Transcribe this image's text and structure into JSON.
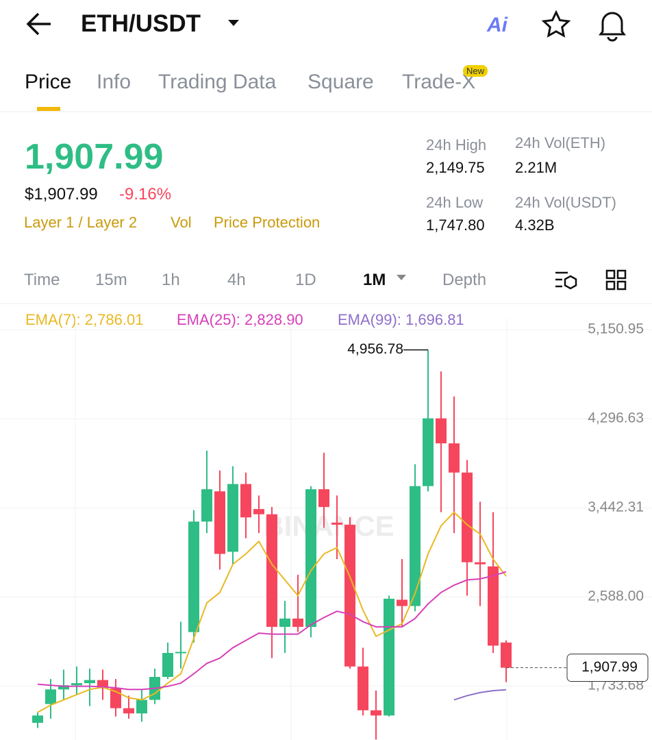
{
  "header": {
    "pair": "ETH/USDT",
    "ai": "Ai"
  },
  "tabs": [
    "Price",
    "Info",
    "Trading Data",
    "Square",
    "Trade-X"
  ],
  "badge": "New",
  "price": {
    "last": "1,907.99",
    "usd": "$1,907.99",
    "change": "-9.16%",
    "tags": [
      "Layer 1 / Layer 2",
      "Vol",
      "Price Protection"
    ]
  },
  "stats": [
    {
      "label": "24h High",
      "value": "2,149.75"
    },
    {
      "label": "24h Vol(ETH)",
      "value": "2.21M"
    },
    {
      "label": "24h Low",
      "value": "1,747.80"
    },
    {
      "label": "24h Vol(USDT)",
      "value": "4.32B"
    }
  ],
  "intervals": [
    "Time",
    "15m",
    "1h",
    "4h",
    "1D",
    "1M",
    "Depth"
  ],
  "ema_labels": [
    "EMA(7): 2,786.01",
    "EMA(25): 2,828.90",
    "EMA(99): 1,696.81"
  ],
  "chart_data": {
    "type": "candlestick",
    "watermark": "BINANCE",
    "up_color": "#2ebd85",
    "down_color": "#f6465d",
    "open": [
      1380,
      1560,
      1700,
      1740,
      1760,
      1790,
      1710,
      1520,
      1470,
      1600,
      1820,
      2050,
      2250,
      3310,
      3600,
      3020,
      3670,
      3430,
      3380,
      2300,
      2380,
      2300,
      3620,
      3300,
      3280,
      1920,
      1500,
      1450,
      2560,
      2500,
      3650,
      4300,
      4060,
      3780,
      2920,
      2880,
      2150
    ],
    "high": [
      1480,
      1800,
      1890,
      1920,
      1900,
      1890,
      1800,
      1640,
      1700,
      1900,
      2150,
      2350,
      3420,
      3990,
      3800,
      3840,
      3780,
      3560,
      3450,
      2550,
      2800,
      3650,
      3970,
      3560,
      3350,
      2100,
      1690,
      2600,
      2950,
      3860,
      4956.78,
      4750,
      4510,
      3900,
      3500,
      3400,
      2170
    ],
    "low": [
      1330,
      1420,
      1600,
      1650,
      1540,
      1600,
      1440,
      1420,
      1390,
      1560,
      1800,
      1900,
      2150,
      3200,
      2850,
      2900,
      3150,
      3200,
      2000,
      2050,
      2250,
      2200,
      3250,
      2950,
      1900,
      1450,
      1220,
      1440,
      2300,
      2450,
      3600,
      3400,
      3200,
      2600,
      2500,
      2050,
      1770
    ],
    "close": [
      1450,
      1700,
      1740,
      1760,
      1790,
      1710,
      1520,
      1470,
      1600,
      1820,
      2050,
      2060,
      3310,
      3620,
      3000,
      3670,
      3350,
      3380,
      2300,
      2380,
      2300,
      3620,
      3450,
      3280,
      1920,
      1500,
      1450,
      2570,
      2500,
      3650,
      4300,
      4060,
      3780,
      2920,
      2900,
      2120,
      1907.99
    ],
    "ema": [
      {
        "name": "EMA(7)",
        "color": "#e8b923",
        "values": [
          1480,
          1550,
          1600,
          1650,
          1700,
          1720,
          1680,
          1620,
          1600,
          1660,
          1760,
          1850,
          2190,
          2530,
          2630,
          2900,
          3000,
          3120,
          2900,
          2750,
          2600,
          2840,
          3000,
          3060,
          2780,
          2460,
          2210,
          2270,
          2330,
          2620,
          3000,
          3270,
          3400,
          3280,
          3190,
          2950,
          2786.01
        ]
      },
      {
        "name": "EMA(25)",
        "color": "#d63fb8",
        "values": [
          1750,
          1740,
          1730,
          1730,
          1730,
          1725,
          1715,
          1700,
          1700,
          1710,
          1730,
          1760,
          1850,
          1950,
          2000,
          2100,
          2170,
          2240,
          2230,
          2230,
          2230,
          2320,
          2390,
          2450,
          2420,
          2350,
          2300,
          2300,
          2300,
          2380,
          2520,
          2630,
          2700,
          2750,
          2760,
          2790,
          2828.9
        ]
      },
      {
        "name": "EMA(99)",
        "color": "#8e6fc8",
        "values": [
          null,
          null,
          null,
          null,
          null,
          null,
          null,
          null,
          null,
          null,
          null,
          null,
          null,
          null,
          null,
          null,
          null,
          null,
          null,
          null,
          null,
          null,
          null,
          null,
          null,
          null,
          null,
          null,
          null,
          null,
          null,
          null,
          1600,
          1640,
          1670,
          1688,
          1696.81
        ]
      }
    ],
    "ylim": [
      1215,
      5388
    ],
    "yticks": [
      {
        "value": 1733.68,
        "label": "1,733.68"
      },
      {
        "value": 2588,
        "label": "2,588.00"
      },
      {
        "value": 3442.31,
        "label": "3,442.31"
      },
      {
        "value": 4296.63,
        "label": "4,296.63"
      },
      {
        "value": 5150.95,
        "label": "5,150.95"
      }
    ],
    "high_label": {
      "value": 4956.78,
      "label": "4,956.78"
    },
    "price_tag": {
      "value": 1907.99,
      "label": "1,907.99"
    }
  }
}
